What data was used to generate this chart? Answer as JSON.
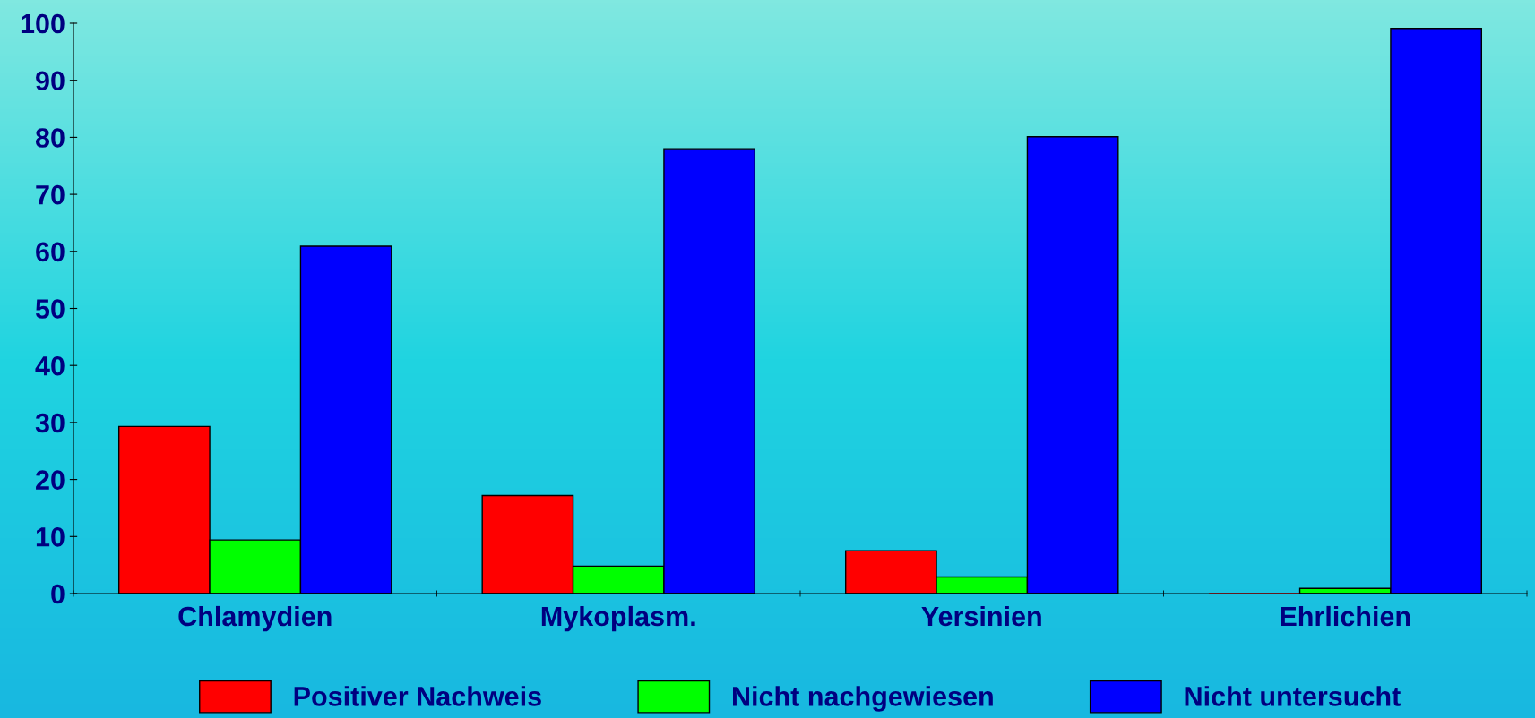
{
  "chart_data": {
    "type": "bar",
    "categories": [
      "Chlamydien",
      "Mykoplasm.",
      "Yersinien",
      "Ehrlichien"
    ],
    "series": [
      {
        "name": "Positiver Nachweis",
        "color": "#ff0000",
        "values": [
          29.3,
          17.2,
          7.5,
          0
        ]
      },
      {
        "name": "Nicht nachgewiesen",
        "color": "#00ff00",
        "values": [
          9.4,
          4.8,
          2.9,
          0.9
        ]
      },
      {
        "name": "Nicht untersucht",
        "color": "#0000ff",
        "values": [
          60.9,
          78.0,
          80.1,
          99.1
        ]
      }
    ],
    "ylim": [
      0,
      100
    ],
    "yticks": [
      0,
      10,
      20,
      30,
      40,
      50,
      60,
      70,
      80,
      90,
      100
    ],
    "grid": false,
    "legend": "bottom"
  }
}
